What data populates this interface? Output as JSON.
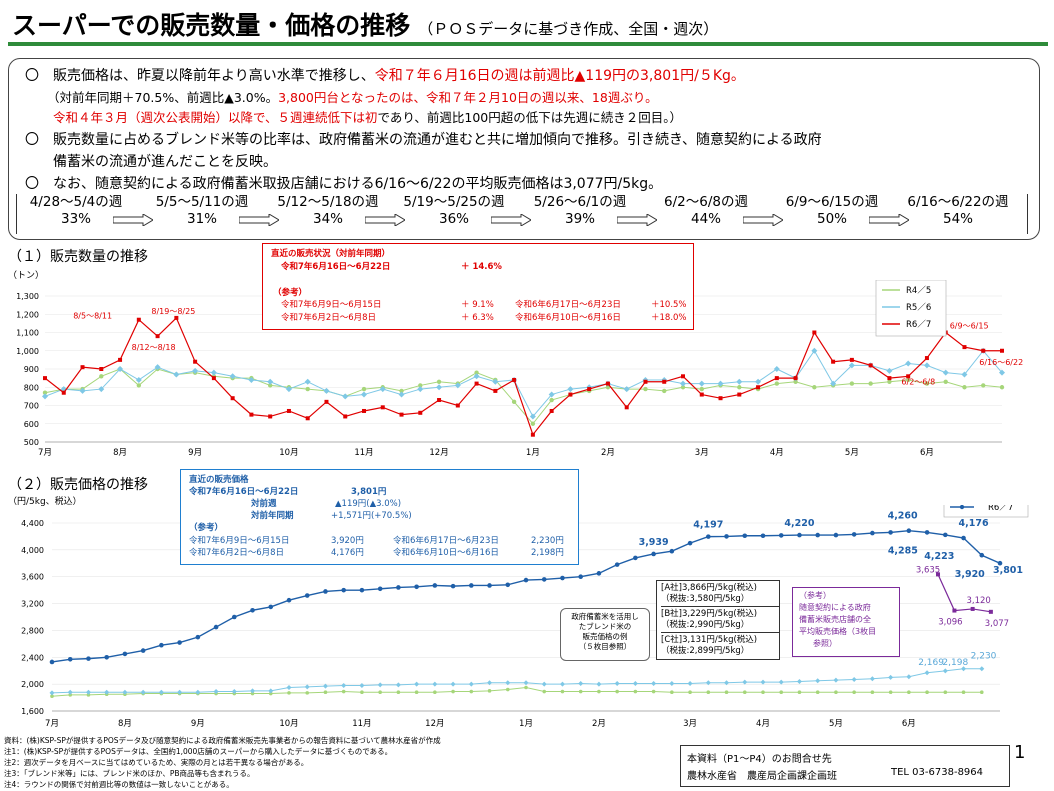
{
  "header": {
    "title": "スーパーでの販売数量・価格の推移",
    "subtitle": "（ＰＯＳデータに基づき作成、全国・週次）"
  },
  "summary": {
    "bullet": "〇",
    "p1a": "販売価格は、昨夏以降前年より高い水準で推移し、",
    "p1b": "令和７年６月16日の週は前週比▲119円の3,801円/５Kg。",
    "p2a": "（対前年同期＋70.5%、前週比▲3.0%。",
    "p2b": "3,800円台となったのは、令和７年２月10日の週以来、18週ぶり。",
    "p3a": "令和４年３月（週次公表開始）以降で、５週連続低下は初",
    "p3b": "であり、前週比100円超の低下は先週に続き２回目。）",
    "p4": "販売数量に占めるブレンド米等の比率は、政府備蓄米の流通が進むと共に増加傾向で推移。引き続き、随意契約による政府",
    "p5": "備蓄米の流通が進んだことを反映。",
    "p6": "なお、随意契約による政府備蓄米取扱店舗における6/16～6/22の平均販売価格は3,077円/5kg。",
    "weeks": [
      {
        "label": "4/28～5/4の週",
        "value": "33%"
      },
      {
        "label": "5/5～5/11の週",
        "value": "31%"
      },
      {
        "label": "5/12～5/18の週",
        "value": "34%"
      },
      {
        "label": "5/19～5/25の週",
        "value": "36%"
      },
      {
        "label": "5/26～6/1の週",
        "value": "39%"
      },
      {
        "label": "6/2～6/8の週",
        "value": "44%"
      },
      {
        "label": "6/9～6/15の週",
        "value": "50%"
      },
      {
        "label": "6/16～6/22の週",
        "value": "54%"
      }
    ]
  },
  "colors": {
    "r6": "#e00000",
    "r5": "#7fc8e6",
    "r4": "#a6d67a",
    "price_r6": "#1f5fa8",
    "title_rule": "#2e8b3a",
    "purple": "#7b2a9a",
    "box_red": "#e00000",
    "box_blue": "#1f7fd0"
  },
  "section1": {
    "heading": "（１）販売数量の推移",
    "unit": "（トン）"
  },
  "section2": {
    "heading": "（２）販売価格の推移",
    "unit": "（円/5kg、税込）"
  },
  "qty_box": {
    "title": "直近の販売状況（対前年同期）",
    "r1_label": "令和7年6月16日～6月22日",
    "r1_val": "＋ 14.6%",
    "ref": "（参考）",
    "r2_label": "令和7年6月9日～6月15日",
    "r2_val": "＋ 9.1%",
    "r2_label2": "令和6年6月17日～6月23日",
    "r2_val2": "＋10.5%",
    "r3_label": "令和7年6月2日～6月8日",
    "r3_val": "＋ 6.3%",
    "r3_label2": "令和6年6月10日～6月16日",
    "r3_val2": "＋18.0%"
  },
  "price_box": {
    "title": "直近の販売価格",
    "r1_label": "令和7年6月16日～6月22日",
    "r1_val": "3,801円",
    "r2_label": "対前週",
    "r2_val": "▲119円(▲3.0%)",
    "r3_label": "対前年同期",
    "r3_val": "+1,571円(+70.5%)",
    "ref": "（参考）",
    "r4_label": "令和7年6月9日～6月15日",
    "r4_val": "3,920円",
    "r4_label2": "令和6年6月17日～6月23日",
    "r4_val2": "2,230円",
    "r5_label": "令和7年6月2日～6月8日",
    "r5_val": "4,176円",
    "r5_label2": "令和6年6月10日～6月16日",
    "r5_val2": "2,198円"
  },
  "blend_note": [
    "政府備蓄米を活用し",
    "たブレンド米の",
    "販売価格の例",
    "（５枚目参照）"
  ],
  "company_box": [
    "[A社]3,866円/5kg(税込)",
    "（税抜:3,580円/5kg）",
    "[B社]3,229円/5kg(税込)",
    "（税抜:2,990円/5kg）",
    "[C社]3,131円/5kg(税込)",
    "（税抜:2,899円/5kg）"
  ],
  "zuii_box": [
    "（参考）",
    "随意契約による政府",
    "備蓄米販売店舗の全",
    "平均販売価格（3枚目",
    "参照）"
  ],
  "footnotes": [
    "資料：(株)KSP-SPが提供するPOSデータ及び随意契約による政府備蓄米販売先事業者からの報告資料に基づいて農林水産省が作成",
    "注1：(株)KSP-SPが提供するPOSデータは、全国約1,000店舗のスーパーから購入したデータに基づくものである。",
    "注2：週次データを月ベースに当てはめているため、実際の月とは若干異なる場合がある。",
    "注3：「ブレンド米等」には、ブレンド米のほか、PB商品等も含まれうる。",
    "注4：ラウンドの関係で対前週比等の数値は一致しないことがある。"
  ],
  "contact": {
    "l1": "本資料（P1～P4）のお問合せ先",
    "l2": "農林水産省　農産局企画課企画班",
    "tel": "TEL 03-6738-8964"
  },
  "page_number": "1",
  "chart_data": [
    {
      "type": "line",
      "title": "（１）販売数量の推移",
      "ylabel": "（トン）",
      "ylim": [
        500,
        1300
      ],
      "yticks": [
        500,
        600,
        700,
        800,
        900,
        1000,
        1100,
        1200,
        1300
      ],
      "month_labels": [
        "7月",
        "8月",
        "9月",
        "10月",
        "11月",
        "12月",
        "1月",
        "2月",
        "3月",
        "4月",
        "5月",
        "6月"
      ],
      "month_week_index": [
        0,
        4,
        8,
        13,
        17,
        21,
        26,
        30,
        35,
        39,
        43,
        47
      ],
      "legend": [
        "R4／5",
        "R5／6",
        "R6／7"
      ],
      "legend_position": "right",
      "series": [
        {
          "name": "R4／5",
          "values": [
            770,
            790,
            790,
            860,
            900,
            810,
            900,
            870,
            880,
            860,
            850,
            850,
            810,
            800,
            790,
            780,
            750,
            790,
            800,
            780,
            810,
            830,
            820,
            880,
            840,
            720,
            600,
            730,
            760,
            780,
            800,
            790,
            790,
            780,
            800,
            790,
            810,
            800,
            790,
            820,
            830,
            800,
            810,
            820,
            820,
            830,
            840,
            820,
            830,
            800,
            810,
            800
          ]
        },
        {
          "name": "R5／6",
          "values": [
            750,
            790,
            780,
            790,
            900,
            840,
            910,
            870,
            890,
            880,
            860,
            840,
            830,
            790,
            830,
            780,
            750,
            760,
            790,
            760,
            790,
            800,
            810,
            860,
            830,
            840,
            640,
            760,
            790,
            800,
            820,
            790,
            840,
            840,
            820,
            820,
            820,
            830,
            830,
            900,
            850,
            1000,
            820,
            920,
            920,
            890,
            930,
            920,
            880,
            870,
            1000,
            880
          ]
        },
        {
          "name": "R6／7",
          "values": [
            850,
            770,
            910,
            900,
            950,
            1170,
            1080,
            1180,
            940,
            850,
            740,
            650,
            640,
            670,
            630,
            720,
            640,
            670,
            690,
            650,
            660,
            730,
            700,
            820,
            780,
            840,
            540,
            670,
            760,
            790,
            820,
            690,
            830,
            830,
            860,
            760,
            740,
            760,
            800,
            850,
            850,
            1100,
            940,
            950,
            920,
            850,
            860,
            960,
            1100,
            1020,
            1000,
            1000
          ]
        }
      ],
      "annotations": [
        "8/5～8/11",
        "8/19～8/25",
        "8/12～8/18",
        "6/9～6/15",
        "6/16～6/22",
        "6/2～6/8"
      ]
    },
    {
      "type": "line",
      "title": "（２）販売価格の推移",
      "ylabel": "（円/5kg、税込）",
      "ylim": [
        1600,
        4400
      ],
      "yticks": [
        1600,
        2000,
        2400,
        2800,
        3200,
        3600,
        4000,
        4400
      ],
      "month_labels": [
        "7月",
        "8月",
        "9月",
        "10月",
        "11月",
        "12月",
        "1月",
        "2月",
        "3月",
        "4月",
        "5月",
        "6月"
      ],
      "month_week_index": [
        0,
        4,
        8,
        13,
        17,
        21,
        26,
        30,
        35,
        39,
        43,
        47
      ],
      "legend": [
        "R4／5",
        "R5／6",
        "R6／7"
      ],
      "legend_position": "top-right",
      "series": [
        {
          "name": "R4／5",
          "values": [
            1820,
            1840,
            1840,
            1850,
            1850,
            1860,
            1860,
            1860,
            1860,
            1860,
            1860,
            1860,
            1860,
            1870,
            1870,
            1880,
            1890,
            1880,
            1880,
            1880,
            1880,
            1880,
            1890,
            1890,
            1900,
            1920,
            1950,
            1890,
            1890,
            1890,
            1890,
            1890,
            1890,
            1890,
            1880,
            1880,
            1880,
            1880,
            1880,
            1880,
            1880,
            1880,
            1880,
            1880,
            1880,
            1880,
            1880,
            1880,
            1880,
            1880,
            1880,
            1880
          ]
        },
        {
          "name": "R5／6",
          "values": [
            1870,
            1880,
            1880,
            1880,
            1880,
            1880,
            1880,
            1880,
            1880,
            1890,
            1890,
            1900,
            1900,
            1950,
            1960,
            1970,
            1980,
            1980,
            1990,
            1990,
            2000,
            2000,
            2000,
            2000,
            2020,
            2020,
            2020,
            2000,
            2000,
            2010,
            2000,
            2010,
            2010,
            2010,
            2010,
            2010,
            2020,
            2020,
            2030,
            2030,
            2030,
            2040,
            2050,
            2060,
            2070,
            2080,
            2100,
            2110,
            2169,
            2198,
            2230,
            2230
          ]
        },
        {
          "name": "R6／7",
          "values": [
            2330,
            2370,
            2380,
            2400,
            2450,
            2500,
            2580,
            2620,
            2700,
            2850,
            3000,
            3100,
            3150,
            3250,
            3320,
            3380,
            3400,
            3400,
            3420,
            3440,
            3450,
            3470,
            3460,
            3470,
            3470,
            3480,
            3550,
            3560,
            3580,
            3600,
            3650,
            3780,
            3880,
            3939,
            3980,
            4100,
            4197,
            4200,
            4210,
            4210,
            4215,
            4220,
            4220,
            4220,
            4230,
            4250,
            4260,
            4285,
            4260,
            4223,
            4176,
            3920,
            3801
          ]
        },
        {
          "name": "随意契約",
          "values": [
            3635,
            3096,
            3120,
            3077
          ]
        }
      ],
      "data_labels": [
        "3,939",
        "4,197",
        "4,220",
        "4,260",
        "4,285",
        "4,223",
        "4,176",
        "3,920",
        "3,801",
        "3,635",
        "3,096",
        "3,120",
        "3,077",
        "2,169",
        "2,198",
        "2,230"
      ]
    }
  ]
}
